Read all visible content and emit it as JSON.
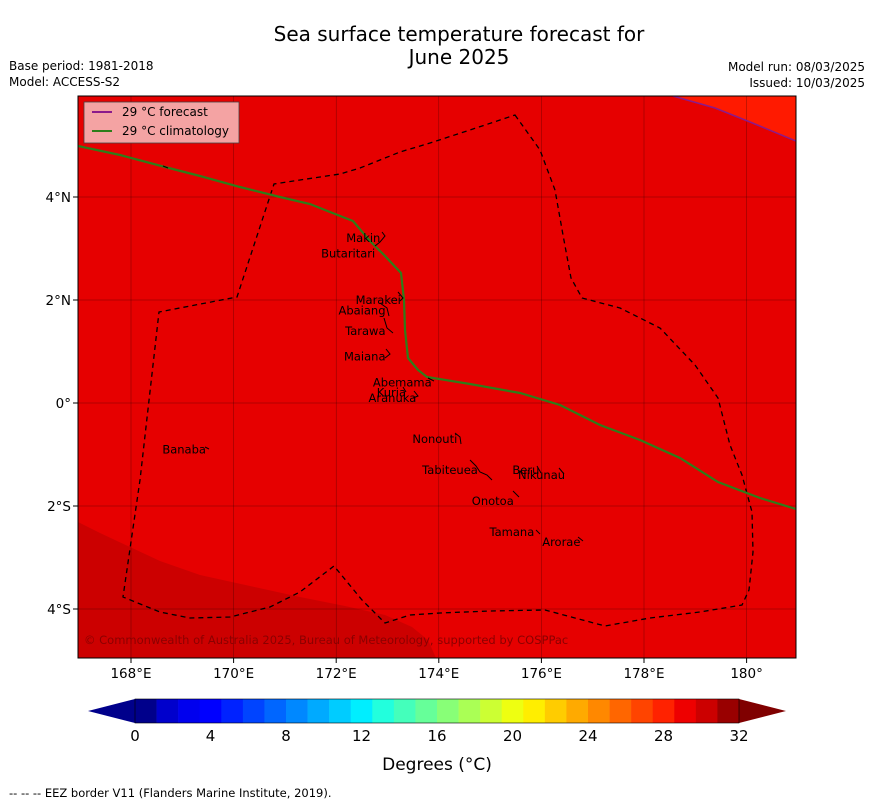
{
  "header": {
    "title_line1": "Sea surface temperature forecast for",
    "title_line2": "June 2025",
    "base_period": "Base period: 1981-2018",
    "model": "Model: ACCESS-S2",
    "model_run": "Model run: 08/03/2025",
    "issued": "Issued: 10/03/2025"
  },
  "legend": {
    "forecast_label": "29 °C  forecast",
    "climatology_label": "29 °C  climatology",
    "forecast_color": "#8b1a8b",
    "climatology_color": "#2e7d1a"
  },
  "axes": {
    "x_ticks": [
      {
        "lon": 168,
        "label": "168°E"
      },
      {
        "lon": 170,
        "label": "170°E"
      },
      {
        "lon": 172,
        "label": "172°E"
      },
      {
        "lon": 174,
        "label": "174°E"
      },
      {
        "lon": 176,
        "label": "176°E"
      },
      {
        "lon": 178,
        "label": "178°E"
      },
      {
        "lon": 180,
        "label": "180°"
      }
    ],
    "y_ticks": [
      {
        "lat": 4,
        "label": "4°N"
      },
      {
        "lat": 2,
        "label": "2°N"
      },
      {
        "lat": 0,
        "label": "0°"
      },
      {
        "lat": -2,
        "label": "2°S"
      },
      {
        "lat": -4,
        "label": "4°S"
      }
    ]
  },
  "islands": [
    {
      "name": "Makin",
      "lon": 172.9,
      "lat": 3.2
    },
    {
      "name": "Butaritari",
      "lon": 172.8,
      "lat": 2.9
    },
    {
      "name": "Marakei",
      "lon": 173.3,
      "lat": 2.0
    },
    {
      "name": "Abaiang",
      "lon": 173.0,
      "lat": 1.8
    },
    {
      "name": "Tarawa",
      "lon": 173.0,
      "lat": 1.4
    },
    {
      "name": "Maiana",
      "lon": 173.0,
      "lat": 0.9
    },
    {
      "name": "Abemama",
      "lon": 173.9,
      "lat": 0.4
    },
    {
      "name": "Kuria",
      "lon": 173.4,
      "lat": 0.2
    },
    {
      "name": "Aranuka",
      "lon": 173.6,
      "lat": 0.1
    },
    {
      "name": "Banaba",
      "lon": 169.5,
      "lat": -0.9
    },
    {
      "name": "Nonouti",
      "lon": 174.4,
      "lat": -0.7
    },
    {
      "name": "Tabiteuea",
      "lon": 174.8,
      "lat": -1.3
    },
    {
      "name": "Beru",
      "lon": 176.0,
      "lat": -1.3
    },
    {
      "name": "Nikunau",
      "lon": 176.5,
      "lat": -1.4
    },
    {
      "name": "Onotoa",
      "lon": 175.5,
      "lat": -1.9
    },
    {
      "name": "Tamana",
      "lon": 175.9,
      "lat": -2.5
    },
    {
      "name": "Arorae",
      "lon": 176.8,
      "lat": -2.7
    }
  ],
  "copyright": "© Commonwealth of Australia 2025, Bureau of Meteorology, supported by COSPPac",
  "colorbar": {
    "ticks": [
      "0",
      "4",
      "8",
      "12",
      "16",
      "20",
      "24",
      "28",
      "32"
    ],
    "unit_label": "Degrees (°C)",
    "colors": [
      "#00008b",
      "#0000cc",
      "#0000ee",
      "#0000ff",
      "#0022ff",
      "#0044ff",
      "#0066ff",
      "#0088ff",
      "#00aaff",
      "#00ccff",
      "#00eeff",
      "#22ffdd",
      "#44ffbb",
      "#66ff99",
      "#88ff77",
      "#aaff55",
      "#ccff33",
      "#eeff11",
      "#ffee00",
      "#ffcc00",
      "#ffaa00",
      "#ff8800",
      "#ff6600",
      "#ff4400",
      "#ff2200",
      "#ee0000",
      "#cc0000",
      "#990000"
    ],
    "min_color": "#00008b",
    "max_color": "#800000"
  },
  "map_colors": {
    "main": "#e60000",
    "cooler": "#cc0000",
    "warmer": "#ff1a00"
  },
  "footer": {
    "eez_note": "--  --  -- EEZ border V11 (Flanders Marine Institute, 2019)."
  }
}
